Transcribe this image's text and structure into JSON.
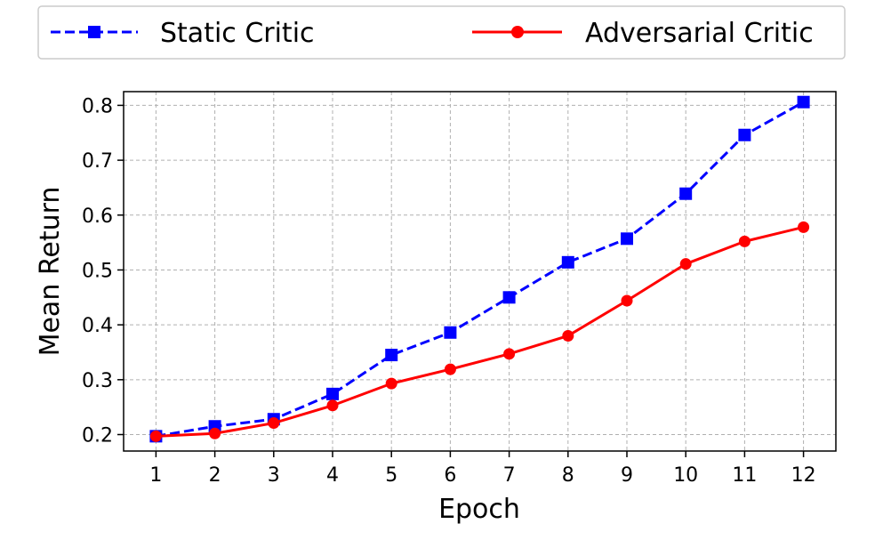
{
  "chart_data": {
    "type": "line",
    "title": "",
    "xlabel": "Epoch",
    "ylabel": "Mean Return",
    "x": [
      1,
      2,
      3,
      4,
      5,
      6,
      7,
      8,
      9,
      10,
      11,
      12
    ],
    "xlim": [
      0.45,
      12.55
    ],
    "ylim": [
      0.17,
      0.825
    ],
    "xticks": [
      1,
      2,
      3,
      4,
      5,
      6,
      7,
      8,
      9,
      10,
      11,
      12
    ],
    "yticks": [
      0.2,
      0.3,
      0.4,
      0.5,
      0.6,
      0.7,
      0.8
    ],
    "grid": true,
    "legend_position": "top, outside plot, horizontal",
    "series": [
      {
        "name": "Static Critic",
        "values": [
          0.197,
          0.215,
          0.228,
          0.274,
          0.345,
          0.386,
          0.45,
          0.514,
          0.557,
          0.639,
          0.746,
          0.806
        ],
        "color": "#0000ff",
        "line_style": "dashed",
        "marker": "square"
      },
      {
        "name": "Adversarial Critic",
        "values": [
          0.197,
          0.202,
          0.221,
          0.253,
          0.293,
          0.319,
          0.347,
          0.38,
          0.444,
          0.511,
          0.552,
          0.578
        ],
        "color": "#ff0000",
        "line_style": "solid",
        "marker": "circle"
      }
    ]
  }
}
